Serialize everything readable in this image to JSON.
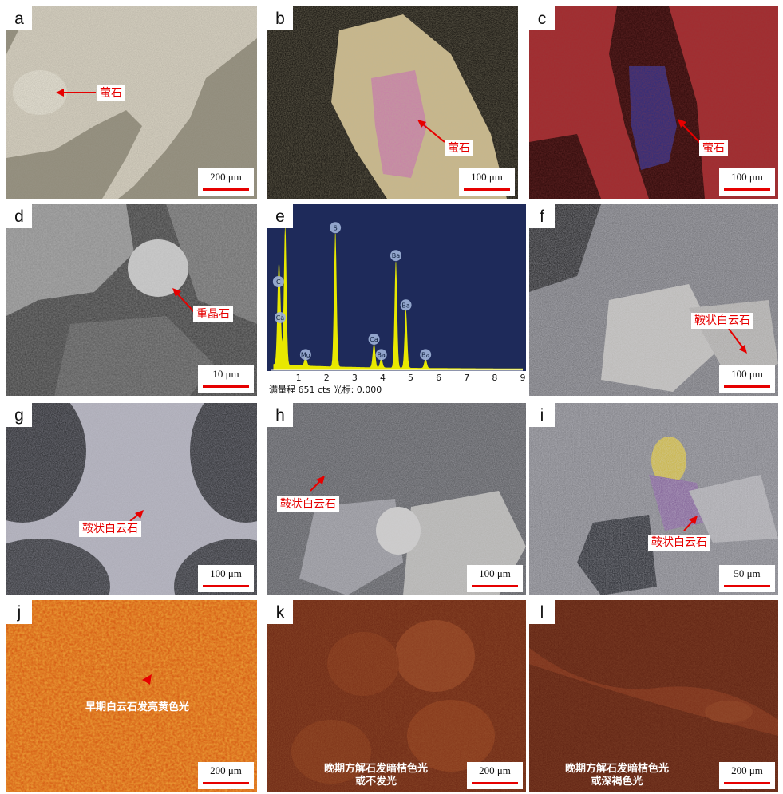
{
  "panels": [
    {
      "letter": "a",
      "label": "萤石",
      "scale": "200 μm"
    },
    {
      "letter": "b",
      "label": "萤石",
      "scale": "100 μm"
    },
    {
      "letter": "c",
      "label": "萤石",
      "scale": "100 μm"
    },
    {
      "letter": "d",
      "label": "重晶石",
      "scale": "10 μm"
    },
    {
      "letter": "e"
    },
    {
      "letter": "f",
      "label": "鞍状白云石",
      "scale": "100 μm"
    },
    {
      "letter": "g",
      "label": "鞍状白云石",
      "scale": "100 μm"
    },
    {
      "letter": "h",
      "label": "鞍状白云石",
      "scale": "100 μm"
    },
    {
      "letter": "i",
      "label": "鞍状白云石",
      "scale": "50 μm"
    },
    {
      "letter": "j",
      "label": "早期白云石发亮黄色光",
      "scale": "200 μm"
    },
    {
      "letter": "k",
      "label_line1": "晚期方解石发暗桔色光",
      "label_line2": "或不发光",
      "scale": "200 μm"
    },
    {
      "letter": "l",
      "label_line1": "晚期方解石发暗桔色光",
      "label_line2": "或深褐色光",
      "scale": "200 μm"
    }
  ],
  "eds": {
    "footer": "满量程 651 cts 光标: 0.000",
    "x_ticks": [
      "1",
      "2",
      "3",
      "4",
      "5",
      "6",
      "7",
      "8",
      "9"
    ],
    "x_range": [
      0,
      9
    ],
    "peaks": [
      {
        "element": "C",
        "x": 0.28,
        "height": 0.5
      },
      {
        "element": "Ca",
        "x": 0.34,
        "height": 0.33
      },
      {
        "element": "O",
        "x": 0.52,
        "height": 0.92
      },
      {
        "element": "Mg",
        "x": 1.25,
        "height": 0.06
      },
      {
        "element": "S",
        "x": 2.31,
        "height": 0.88
      },
      {
        "element": "Ca",
        "x": 3.69,
        "height": 0.16
      },
      {
        "element": "Ba",
        "x": 3.95,
        "height": 0.06
      },
      {
        "element": "Ba",
        "x": 4.47,
        "height": 0.7
      },
      {
        "element": "Ba",
        "x": 4.83,
        "height": 0.38
      },
      {
        "element": "Ba",
        "x": 5.53,
        "height": 0.06
      }
    ]
  },
  "colors": {
    "accent": "#e60000",
    "eds_bg": "#1e2a5a",
    "eds_trace": "#e8e800"
  }
}
